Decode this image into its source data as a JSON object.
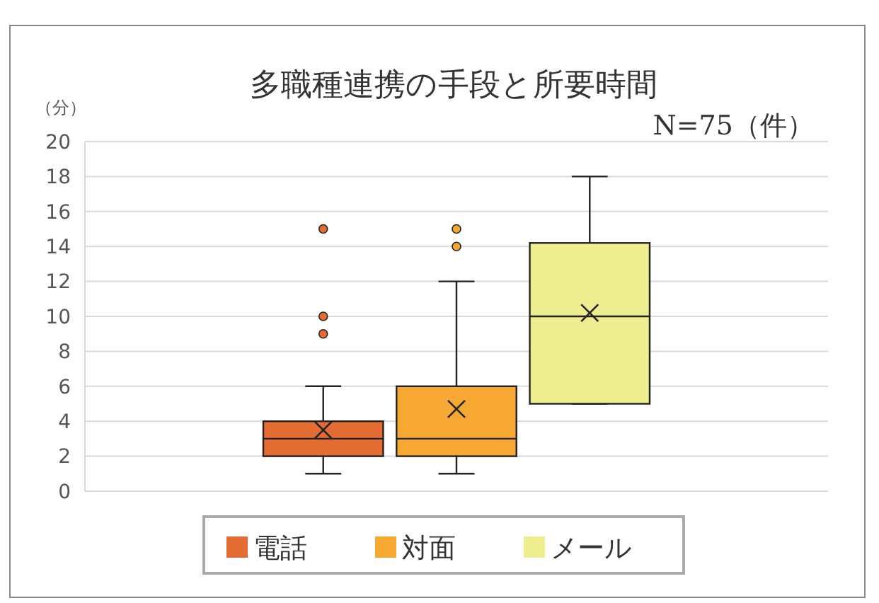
{
  "chart_data": {
    "type": "box",
    "title": "多職種連携の手段と所要時間",
    "ylabel": "（分）",
    "annotations": [
      "N=75（件）"
    ],
    "categories": [
      null
    ],
    "series": [
      {
        "name": "電話",
        "color": "#e36c33",
        "boxes": [
          {
            "low": 1,
            "q1": 2,
            "median": 3,
            "q3": 4,
            "high": 6,
            "mean": 3.5,
            "outliers": [
              9,
              10,
              15
            ]
          }
        ]
      },
      {
        "name": "対面",
        "color": "#f7a833",
        "boxes": [
          {
            "low": 1,
            "q1": 2,
            "median": 3,
            "q3": 6,
            "high": 12,
            "mean": 4.7,
            "outliers": [
              14,
              15
            ]
          }
        ]
      },
      {
        "name": "メール",
        "color": "#eeee90",
        "boxes": [
          {
            "low": 5,
            "q1": 5,
            "median": 10,
            "q3": 14.2,
            "high": 18,
            "mean": 10.2
          }
        ]
      }
    ],
    "ylim": [
      0,
      20
    ],
    "yticks": [
      0,
      2,
      4,
      6,
      8,
      10,
      12,
      14,
      16,
      18,
      20
    ],
    "grid": "y",
    "legend": "bottom"
  }
}
